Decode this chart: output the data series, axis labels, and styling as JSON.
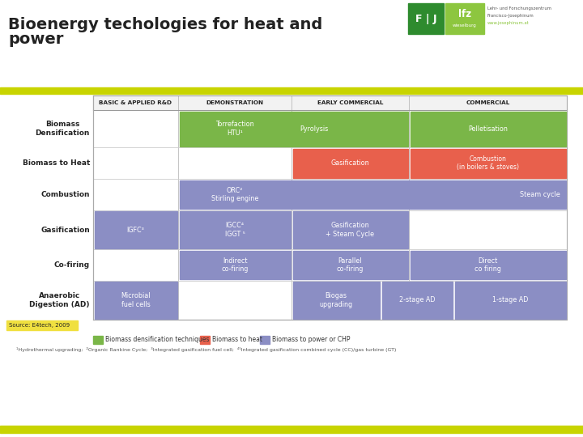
{
  "title_line1": "Bioenergy techologies for heat and",
  "title_line2": "power",
  "bg_color": "#ffffff",
  "header_bar_color": "#c8d400",
  "bottom_bar_color": "#c8d400",
  "col_headers": [
    "BASIC & APPLIED R&D",
    "DEMONSTRATION",
    "EARLY COMMERCIAL",
    "COMMERCIAL"
  ],
  "row_labels": [
    "Biomass\nDensification",
    "Biomass to Heat",
    "Combustion",
    "Gasification",
    "Co-firing",
    "Anaerobic\nDigestion (AD)"
  ],
  "green_color": "#7ab648",
  "red_color": "#e8604c",
  "purple_color": "#8b8ec4",
  "col_header_bg": "#f2f2f2",
  "table_line_color": "#cccccc",
  "source_text": "Source: E4tech, 2009",
  "footnote": "¹Hydrothermal upgrading;  ²Organic Rankine Cycle;  ³Integrated gasification fuel cell;  ⁴⁵Integrated gasification combined cycle (CC)/gas turbine (GT)",
  "logo_fj_color": "#2e8b2e",
  "logo_lfz_color": "#8dc63f",
  "legend_items": [
    [
      "#7ab648",
      "Biomass densification techniques"
    ],
    [
      "#e8604c",
      "Biomass to heat"
    ],
    [
      "#8b8ec4",
      "Biomass to power or CHP"
    ]
  ]
}
